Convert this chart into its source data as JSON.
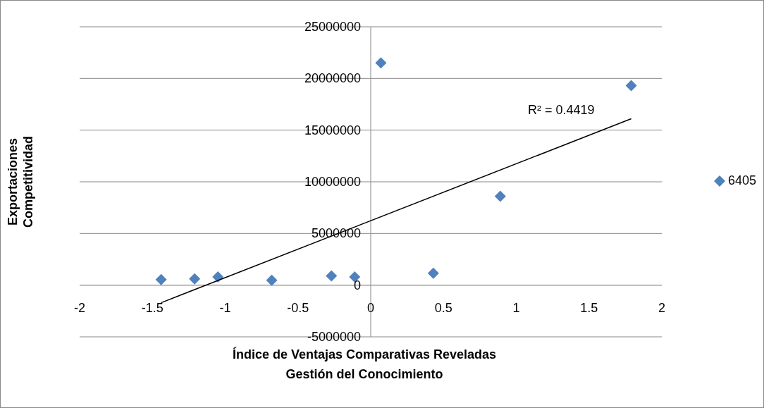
{
  "chart_data": {
    "type": "scatter",
    "xlabel": "Índice de Ventajas Comparativas Reveladas\nGestión del Conocimiento",
    "ylabel": "Exportaciones\nCompetitividad",
    "series": [
      {
        "name": "6405",
        "color": "#4f81bd",
        "marker": "diamond",
        "x": [
          -1.44,
          -1.21,
          -1.05,
          -0.68,
          -0.27,
          -0.11,
          0.07,
          0.43,
          0.89,
          1.79
        ],
        "values": [
          540000,
          600000,
          800000,
          480000,
          900000,
          800000,
          21500000,
          1150000,
          8600000,
          19300000
        ]
      },
      {
        "type": "line",
        "color": "#000000",
        "x": [
          -1.44,
          1.79
        ],
        "values": [
          -1700000,
          16100000
        ]
      }
    ],
    "annotations": [
      "R² = 0.4419"
    ],
    "xlim": [
      -2,
      2
    ],
    "xticks": [
      -2,
      -1.5,
      -1,
      -0.5,
      0,
      0.5,
      1,
      1.5,
      2
    ],
    "ylim": [
      -5000000,
      25000000
    ],
    "yticks": [
      -5000000,
      0,
      5000000,
      10000000,
      15000000,
      20000000,
      25000000
    ],
    "grid": "y",
    "legend": "right"
  }
}
